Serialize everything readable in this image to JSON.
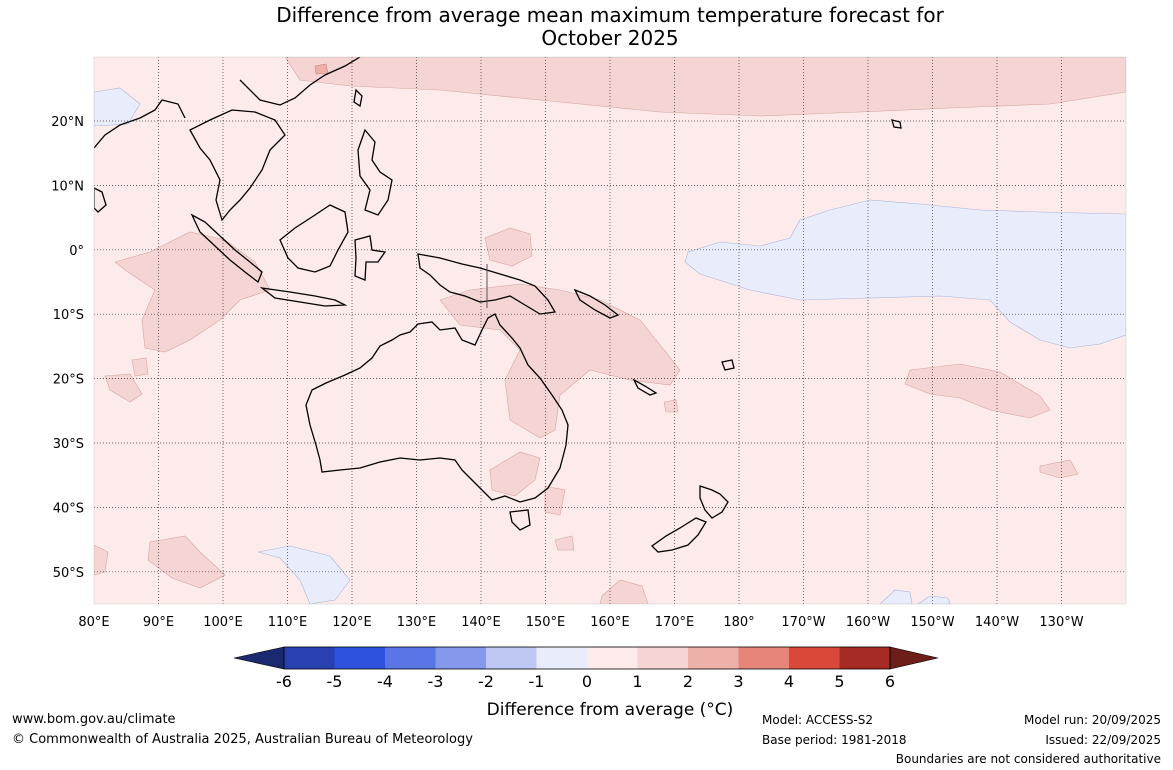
{
  "title_line1": "Difference from average mean maximum temperature forecast for",
  "title_line2": "October 2025",
  "map": {
    "lon_ticks": [
      "80°E",
      "90°E",
      "100°E",
      "110°E",
      "120°E",
      "130°E",
      "140°E",
      "150°E",
      "160°E",
      "170°E",
      "180°",
      "170°W",
      "160°W",
      "150°W",
      "140°W",
      "130°W"
    ],
    "lat_ticks": [
      "20°N",
      "10°N",
      "0°",
      "10°S",
      "20°S",
      "30°S",
      "40°S",
      "50°S"
    ],
    "background_color": "#fcebea",
    "grid": true
  },
  "colorbar": {
    "ticks": [
      "-6",
      "-5",
      "-4",
      "-3",
      "-2",
      "-1",
      "0",
      "1",
      "2",
      "3",
      "4",
      "5",
      "6"
    ],
    "colors": [
      "#1b2a6e",
      "#2a40b0",
      "#2f52dc",
      "#5a76e6",
      "#8498ec",
      "#bfc8f4",
      "#e8ecfb",
      "#fcebea",
      "#f5d5d3",
      "#eeb1aa",
      "#e6857a",
      "#d9483b",
      "#a62b24",
      "#6d1e19"
    ],
    "label": "Difference from average (°C)"
  },
  "footer": {
    "url": "www.bom.gov.au/climate",
    "copyright": "© Commonwealth of Australia 2025, Australian Bureau of Meteorology",
    "model": "Model: ACCESS-S2",
    "base_period": "Base period: 1981-2018",
    "model_run": "Model run: 20/09/2025",
    "issued": "Issued: 22/09/2025",
    "boundaries": "Boundaries are not considered authoritative"
  }
}
